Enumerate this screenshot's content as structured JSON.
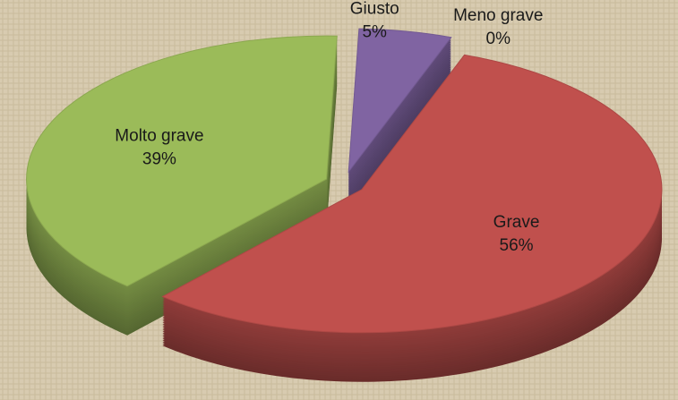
{
  "chart_data": {
    "type": "pie3d",
    "categories": [
      "Meno grave",
      "Grave",
      "Molto grave",
      "Giusto"
    ],
    "values": [
      0,
      56,
      39,
      5
    ],
    "value_labels": [
      "0%",
      "56%",
      "39%",
      "5%"
    ],
    "colors": [
      "#4f81bd",
      "#c0504d",
      "#9bbb59",
      "#8064a2"
    ]
  }
}
